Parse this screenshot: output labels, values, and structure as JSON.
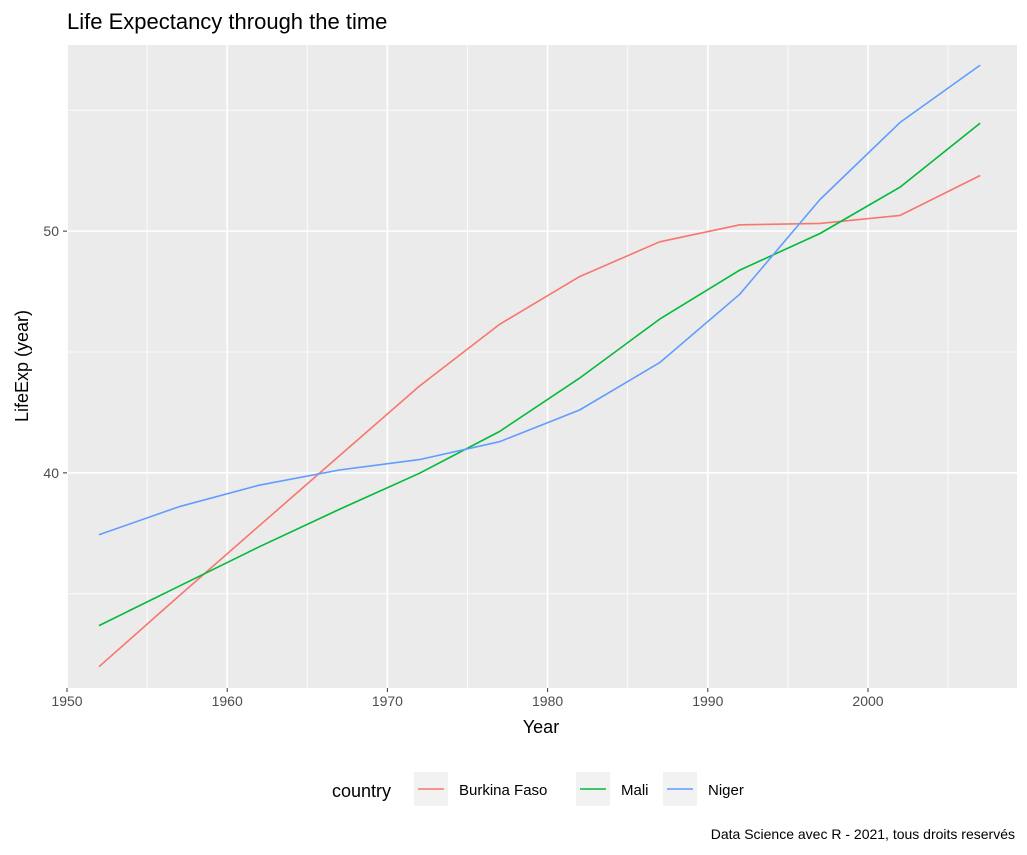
{
  "chart_data": {
    "type": "line",
    "title": "Life Expectancy through the time",
    "xlabel": "Year",
    "ylabel": "LifeExp (year)",
    "caption": "Data Science avec R - 2021, tous droits reservés",
    "x": [
      1952,
      1957,
      1962,
      1967,
      1972,
      1977,
      1982,
      1987,
      1992,
      1997,
      2002,
      2007
    ],
    "xlim": [
      1950,
      2009.3
    ],
    "ylim": [
      31.1,
      57.7
    ],
    "x_major_ticks": [
      1950,
      1960,
      1970,
      1980,
      1990,
      2000
    ],
    "x_minor_ticks": [
      1955,
      1965,
      1975,
      1985,
      1995,
      2005
    ],
    "y_major_ticks": [
      40,
      50
    ],
    "y_minor_ticks": [
      35,
      45,
      55
    ],
    "grid": true,
    "background": "#ebebeb",
    "legend": {
      "title": "country",
      "position": "bottom"
    },
    "series": [
      {
        "name": "Burkina Faso",
        "color": "#f8766d",
        "values": [
          31.98,
          34.91,
          37.81,
          40.7,
          43.59,
          46.14,
          48.12,
          49.56,
          50.26,
          50.32,
          50.65,
          52.3
        ]
      },
      {
        "name": "Mali",
        "color": "#00ba38",
        "values": [
          33.68,
          35.31,
          36.94,
          38.49,
          39.98,
          41.71,
          43.92,
          46.36,
          48.39,
          49.9,
          51.82,
          54.47
        ]
      },
      {
        "name": "Niger",
        "color": "#619cff",
        "values": [
          37.44,
          38.6,
          39.49,
          40.12,
          40.55,
          41.29,
          42.6,
          44.56,
          47.39,
          51.31,
          54.5,
          56.87
        ]
      }
    ]
  }
}
